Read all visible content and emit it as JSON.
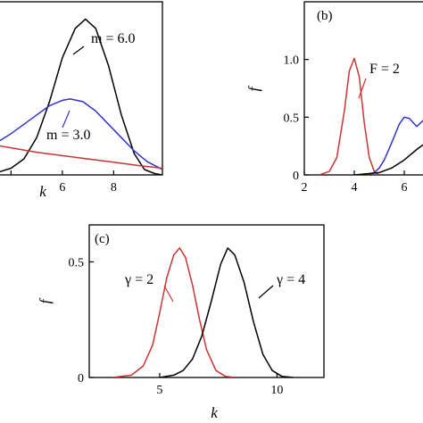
{
  "chart_data": [
    {
      "panel": "a",
      "type": "line",
      "xlabel": "k",
      "xlim": [
        3.5,
        9.9
      ],
      "ylim": [
        0,
        1.3
      ],
      "xticks": [
        4,
        6,
        8
      ],
      "xtick_labels": [
        "",
        "6",
        "8"
      ],
      "annotations": [
        {
          "text": "m = 6.0",
          "series_index": 0
        },
        {
          "text": "m = 3.0",
          "series_index": 1
        }
      ],
      "series": [
        {
          "color": "#000000",
          "x": [
            3.5,
            4.0,
            4.5,
            5.0,
            5.5,
            6.0,
            6.5,
            6.9,
            7.3,
            7.8,
            8.3,
            8.8,
            9.2,
            9.6,
            9.9
          ],
          "y": [
            0.02,
            0.05,
            0.12,
            0.28,
            0.55,
            0.88,
            1.1,
            1.17,
            1.1,
            0.82,
            0.45,
            0.16,
            0.04,
            0.01,
            0.0
          ]
        },
        {
          "color": "#3333cc",
          "x": [
            3.5,
            4.0,
            4.5,
            5.0,
            5.5,
            6.0,
            6.3,
            6.8,
            7.3,
            7.8,
            8.3,
            8.8,
            9.3,
            9.9
          ],
          "y": [
            0.25,
            0.31,
            0.38,
            0.45,
            0.52,
            0.56,
            0.57,
            0.55,
            0.48,
            0.38,
            0.28,
            0.18,
            0.1,
            0.04
          ]
        },
        {
          "color": "#cc3333",
          "x": [
            3.5,
            5.0,
            6.0,
            7.0,
            8.0,
            9.0,
            9.9
          ],
          "y": [
            0.22,
            0.17,
            0.145,
            0.12,
            0.095,
            0.07,
            0.05
          ]
        }
      ]
    },
    {
      "panel": "b",
      "panel_label": "(b)",
      "type": "line",
      "ylabel": "f",
      "xlim": [
        2,
        7
      ],
      "ylim": [
        0,
        1.5
      ],
      "xticks": [
        2,
        4,
        6
      ],
      "yticks": [
        0,
        0.5,
        1.0
      ],
      "ytick_labels": [
        "0",
        "0.5",
        "1.0"
      ],
      "annotations": [
        {
          "text": "F = 2",
          "series_index": 0
        }
      ],
      "series": [
        {
          "color": "#cc3333",
          "x": [
            2.6,
            3.0,
            3.3,
            3.6,
            3.8,
            4.0,
            4.2,
            4.4,
            4.6,
            4.8,
            5.0
          ],
          "y": [
            0.0,
            0.03,
            0.15,
            0.55,
            0.9,
            1.01,
            0.85,
            0.45,
            0.15,
            0.03,
            0.0
          ]
        },
        {
          "color": "#3333cc",
          "x": [
            4.5,
            4.8,
            5.0,
            5.2,
            5.5,
            5.8,
            6.0,
            6.2,
            6.5,
            6.8,
            7.0
          ],
          "y": [
            0.0,
            0.02,
            0.06,
            0.13,
            0.28,
            0.44,
            0.5,
            0.49,
            0.42,
            0.48,
            0.56
          ]
        },
        {
          "color": "#000000",
          "x": [
            4.0,
            4.5,
            5.0,
            5.5,
            6.0,
            6.5,
            7.0
          ],
          "y": [
            0.0,
            0.01,
            0.02,
            0.06,
            0.13,
            0.22,
            0.3
          ]
        }
      ]
    },
    {
      "panel": "c",
      "panel_label": "(c)",
      "type": "line",
      "xlabel": "k",
      "ylabel": "f",
      "xlim": [
        2,
        12
      ],
      "ylim": [
        0,
        0.66
      ],
      "xticks": [
        5,
        10
      ],
      "yticks": [
        0,
        0.5
      ],
      "ytick_labels": [
        "0",
        "0.5"
      ],
      "annotations": [
        {
          "text": "γ = 2",
          "series_index": 0
        },
        {
          "text": "γ = 4",
          "series_index": 1
        }
      ],
      "series": [
        {
          "color": "#cc3333",
          "x": [
            3.0,
            3.8,
            4.3,
            4.7,
            5.0,
            5.3,
            5.6,
            5.85,
            6.1,
            6.4,
            6.7,
            7.0,
            7.4,
            7.8,
            8.2
          ],
          "y": [
            0.0,
            0.01,
            0.05,
            0.14,
            0.28,
            0.43,
            0.53,
            0.56,
            0.52,
            0.4,
            0.25,
            0.12,
            0.03,
            0.005,
            0.0
          ]
        },
        {
          "color": "#000000",
          "x": [
            5.0,
            5.6,
            6.0,
            6.4,
            6.8,
            7.2,
            7.6,
            7.9,
            8.2,
            8.6,
            9.0,
            9.4,
            9.8,
            10.2,
            10.7
          ],
          "y": [
            0.0,
            0.01,
            0.03,
            0.08,
            0.18,
            0.33,
            0.49,
            0.56,
            0.53,
            0.41,
            0.24,
            0.1,
            0.03,
            0.005,
            0.0
          ]
        }
      ]
    }
  ]
}
